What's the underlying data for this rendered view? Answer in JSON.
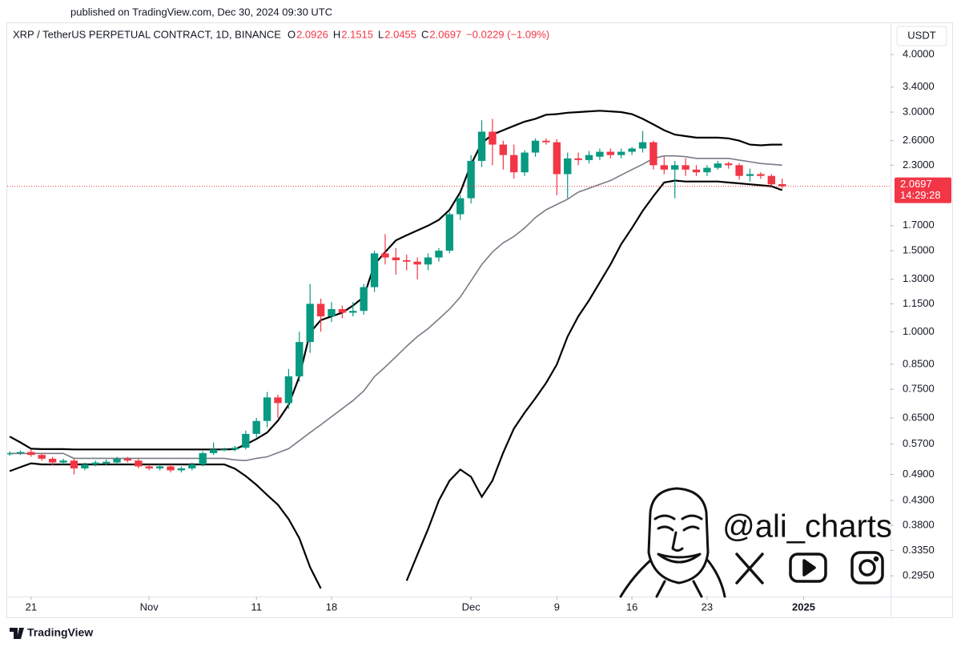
{
  "published": "published on TradingView.com, Dec 30, 2024 09:30 UTC",
  "chart_data": {
    "type": "candlestick",
    "symbol": "XRP / TetherUS PERPETUAL CONTRACT, 1D, BINANCE",
    "ohlc": [
      {
        "label": "O",
        "value": 2.0926
      },
      {
        "label": "H",
        "value": 2.1515
      },
      {
        "label": "L",
        "value": 2.0455
      },
      {
        "label": "C",
        "value": 2.0697
      }
    ],
    "change": "−0.0229 (−1.09%)",
    "currency": "USDT",
    "last_price": {
      "value": 2.0697,
      "label": "2.0697"
    },
    "countdown": "14:29:28",
    "log_scale": true,
    "up_color": "#089981",
    "down_color": "#f23645",
    "band_colors": {
      "upper": "#000000",
      "middle": "#787b86",
      "lower": "#000000"
    },
    "xlim": [
      -0.9,
      82.1
    ],
    "ylim": [
      0.266,
      4.66
    ],
    "xticks": [
      {
        "value": 2,
        "label": "21"
      },
      {
        "value": 13,
        "label": "Nov"
      },
      {
        "value": 23,
        "label": "11"
      },
      {
        "value": 30,
        "label": "18"
      },
      {
        "value": 43,
        "label": "Dec"
      },
      {
        "value": 51,
        "label": "9"
      },
      {
        "value": 58,
        "label": "16"
      },
      {
        "value": 65,
        "label": "23"
      },
      {
        "value": 74,
        "label": "2025"
      }
    ],
    "yticks": [
      {
        "value": 4,
        "label": "4.0000"
      },
      {
        "value": 3.4,
        "label": "3.4000"
      },
      {
        "value": 3,
        "label": "3.0000"
      },
      {
        "value": 2.6,
        "label": "2.6000"
      },
      {
        "value": 2.3,
        "label": "2.3000"
      },
      {
        "value": 1.7,
        "label": "1.7000"
      },
      {
        "value": 1.5,
        "label": "1.5000"
      },
      {
        "value": 1.3,
        "label": "1.3000"
      },
      {
        "value": 1.15,
        "label": "1.1500"
      },
      {
        "value": 1,
        "label": "1.0000"
      },
      {
        "value": 0.85,
        "label": "0.8500"
      },
      {
        "value": 0.75,
        "label": "0.7500"
      },
      {
        "value": 0.65,
        "label": "0.6500"
      },
      {
        "value": 0.57,
        "label": "0.5700"
      },
      {
        "value": 0.49,
        "label": "0.4900"
      },
      {
        "value": 0.43,
        "label": "0.4300"
      },
      {
        "value": 0.38,
        "label": "0.3800"
      },
      {
        "value": 0.335,
        "label": "0.3350"
      },
      {
        "value": 0.295,
        "label": "0.2950"
      }
    ],
    "candles": {
      "open": [
        0.542,
        0.545,
        0.548,
        0.54,
        0.53,
        0.52,
        0.525,
        0.505,
        0.515,
        0.518,
        0.52,
        0.53,
        0.525,
        0.51,
        0.505,
        0.51,
        0.5,
        0.505,
        0.515,
        0.545,
        0.555,
        0.555,
        0.56,
        0.6,
        0.64,
        0.72,
        0.7,
        0.8,
        0.95,
        1.15,
        1.08,
        1.12,
        1.1,
        1.11,
        1.25,
        1.48,
        1.45,
        1.43,
        1.42,
        1.4,
        1.45,
        1.5,
        1.8,
        1.95,
        2.35,
        2.72,
        2.55,
        2.42,
        2.22,
        2.45,
        2.6,
        2.58,
        2.2,
        2.38,
        2.36,
        2.4,
        2.46,
        2.42,
        2.46,
        2.5,
        2.58,
        2.3,
        2.25,
        2.3,
        2.25,
        2.22,
        2.27,
        2.32,
        2.3,
        2.18,
        2.2,
        2.18,
        2.0926
      ],
      "high": [
        0.55,
        0.552,
        0.555,
        0.545,
        0.535,
        0.53,
        0.53,
        0.52,
        0.525,
        0.528,
        0.535,
        0.535,
        0.53,
        0.515,
        0.515,
        0.515,
        0.51,
        0.52,
        0.55,
        0.575,
        0.56,
        0.565,
        0.61,
        0.65,
        0.74,
        0.73,
        0.83,
        1.0,
        1.27,
        1.18,
        1.16,
        1.14,
        1.16,
        1.27,
        1.5,
        1.63,
        1.52,
        1.47,
        1.45,
        1.48,
        1.52,
        1.82,
        1.98,
        2.42,
        2.88,
        2.9,
        2.6,
        2.55,
        2.48,
        2.63,
        2.63,
        2.62,
        2.45,
        2.45,
        2.47,
        2.5,
        2.5,
        2.5,
        2.52,
        2.73,
        2.6,
        2.4,
        2.35,
        2.38,
        2.3,
        2.3,
        2.35,
        2.34,
        2.32,
        2.26,
        2.22,
        2.2,
        2.1515
      ],
      "low": [
        0.538,
        0.54,
        0.535,
        0.525,
        0.512,
        0.515,
        0.49,
        0.5,
        0.51,
        0.512,
        0.515,
        0.52,
        0.505,
        0.5,
        0.5,
        0.495,
        0.495,
        0.5,
        0.51,
        0.54,
        0.55,
        0.55,
        0.555,
        0.59,
        0.62,
        0.65,
        0.68,
        0.78,
        0.9,
        1.0,
        1.05,
        1.07,
        1.08,
        1.09,
        1.22,
        1.4,
        1.33,
        1.36,
        1.3,
        1.36,
        1.42,
        1.48,
        1.75,
        1.9,
        2.28,
        2.3,
        2.25,
        2.15,
        2.18,
        2.4,
        2.55,
        1.98,
        1.95,
        2.3,
        2.32,
        2.36,
        2.38,
        2.38,
        2.42,
        2.45,
        2.25,
        2.2,
        1.95,
        2.18,
        2.18,
        2.18,
        2.25,
        2.26,
        2.14,
        2.12,
        2.15,
        2.08,
        2.0455
      ],
      "close": [
        0.545,
        0.548,
        0.54,
        0.53,
        0.52,
        0.525,
        0.505,
        0.515,
        0.52,
        0.522,
        0.53,
        0.525,
        0.51,
        0.505,
        0.51,
        0.5,
        0.505,
        0.515,
        0.545,
        0.555,
        0.555,
        0.56,
        0.6,
        0.64,
        0.72,
        0.7,
        0.8,
        0.95,
        1.15,
        1.08,
        1.12,
        1.1,
        1.11,
        1.25,
        1.48,
        1.45,
        1.43,
        1.42,
        1.4,
        1.45,
        1.5,
        1.8,
        1.95,
        2.35,
        2.72,
        2.55,
        2.42,
        2.22,
        2.45,
        2.6,
        2.58,
        2.2,
        2.38,
        2.36,
        2.42,
        2.46,
        2.42,
        2.46,
        2.5,
        2.58,
        2.3,
        2.25,
        2.3,
        2.25,
        2.22,
        2.27,
        2.32,
        2.3,
        2.18,
        2.2,
        2.18,
        2.09,
        2.0697
      ]
    },
    "bands": {
      "upper": [
        0.592,
        0.575,
        0.557,
        0.556,
        0.556,
        0.556,
        0.555,
        0.555,
        0.555,
        0.555,
        0.555,
        0.555,
        0.555,
        0.555,
        0.555,
        0.555,
        0.555,
        0.555,
        0.555,
        0.555,
        0.555,
        0.556,
        0.569,
        0.585,
        0.604,
        0.641,
        0.694,
        0.799,
        0.996,
        1.06,
        1.08,
        1.1,
        1.14,
        1.19,
        1.4,
        1.49,
        1.58,
        1.62,
        1.66,
        1.7,
        1.75,
        1.84,
        2.01,
        2.31,
        2.57,
        2.68,
        2.74,
        2.8,
        2.86,
        2.9,
        2.96,
        2.97,
        2.99,
        3.0,
        3.01,
        3.02,
        3.01,
        3.0,
        2.97,
        2.9,
        2.82,
        2.74,
        2.68,
        2.66,
        2.64,
        2.64,
        2.64,
        2.63,
        2.6,
        2.55,
        2.54,
        2.55,
        2.55
      ],
      "middle": [
        0.544,
        0.544,
        0.544,
        0.544,
        0.544,
        0.544,
        0.531,
        0.531,
        0.531,
        0.531,
        0.531,
        0.531,
        0.531,
        0.531,
        0.531,
        0.531,
        0.531,
        0.531,
        0.531,
        0.531,
        0.531,
        0.527,
        0.525,
        0.531,
        0.535,
        0.546,
        0.557,
        0.58,
        0.604,
        0.628,
        0.654,
        0.681,
        0.709,
        0.744,
        0.799,
        0.838,
        0.883,
        0.93,
        0.976,
        1.016,
        1.066,
        1.12,
        1.19,
        1.29,
        1.4,
        1.49,
        1.56,
        1.61,
        1.68,
        1.77,
        1.84,
        1.89,
        1.94,
        2.01,
        2.05,
        2.09,
        2.13,
        2.19,
        2.25,
        2.31,
        2.38,
        2.41,
        2.41,
        2.4,
        2.38,
        2.38,
        2.38,
        2.38,
        2.36,
        2.34,
        2.32,
        2.31,
        2.3
      ],
      "lower": [
        0.498,
        0.508,
        0.518,
        0.515,
        0.515,
        0.515,
        0.515,
        0.515,
        0.515,
        0.515,
        0.515,
        0.515,
        0.515,
        0.515,
        0.515,
        0.515,
        0.515,
        0.515,
        0.515,
        0.515,
        0.515,
        0.504,
        0.486,
        0.465,
        0.442,
        0.421,
        0.392,
        0.356,
        0.308,
        0.277,
        null,
        null,
        null,
        null,
        null,
        null,
        null,
        0.288,
        0.328,
        0.373,
        0.43,
        0.475,
        0.502,
        0.484,
        0.438,
        0.475,
        0.546,
        0.616,
        0.667,
        0.717,
        0.774,
        0.849,
        0.976,
        1.08,
        1.17,
        1.28,
        1.4,
        1.55,
        1.68,
        1.83,
        1.97,
        2.11,
        2.13,
        2.12,
        2.12,
        2.12,
        2.12,
        2.11,
        2.1,
        2.09,
        2.08,
        2.07,
        2.03
      ]
    }
  },
  "watermark": {
    "handle": "@ali_charts"
  },
  "footer": {
    "brand": "TradingView"
  }
}
